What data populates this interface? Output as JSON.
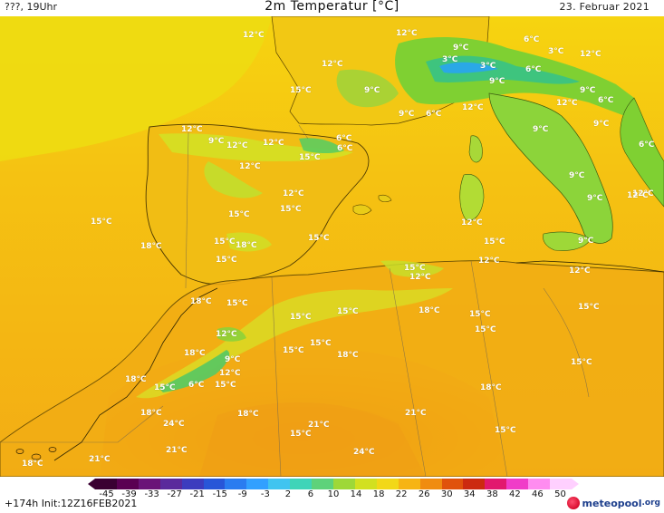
{
  "header": {
    "left": "???, 19Uhr",
    "title": "2m Temperatur [°C]",
    "date": "23. Februar 2021"
  },
  "footer": {
    "lead": "+174h",
    "init": "Init:12Z16FEB2021",
    "brand": "meteopool",
    "brand_tld": ".org"
  },
  "colorbar": {
    "ticks": [
      "-45",
      "-39",
      "-33",
      "-27",
      "-21",
      "-15",
      "-9",
      "-3",
      "2",
      "6",
      "10",
      "14",
      "18",
      "22",
      "26",
      "30",
      "34",
      "38",
      "42",
      "46",
      "50"
    ],
    "colors": [
      "#3a0032",
      "#5a0052",
      "#6a1478",
      "#5a2a9c",
      "#3c3cbe",
      "#2856d8",
      "#2a7cf0",
      "#32a0ff",
      "#40c4f0",
      "#3fd4b8",
      "#5ed27a",
      "#9ed838",
      "#d2e020",
      "#f2d818",
      "#f6b414",
      "#f08c10",
      "#e0520c",
      "#cc2a10",
      "#e2186e",
      "#f03cc8",
      "#ff8cf0",
      "#ffd0ff"
    ],
    "icon": "left-arrow-icon"
  },
  "labels": [
    {
      "text": "12°C"
    },
    {
      "text": "12°C"
    },
    {
      "text": "9°C"
    },
    {
      "text": "6°C"
    },
    {
      "text": "12°C"
    },
    {
      "text": "3°C"
    },
    {
      "text": "3°C"
    },
    {
      "text": "9°C"
    },
    {
      "text": "3°C"
    },
    {
      "text": "9°C"
    },
    {
      "text": "6°C"
    },
    {
      "text": "12°C"
    },
    {
      "text": "9°C"
    },
    {
      "text": "15°C"
    },
    {
      "text": "6°C"
    },
    {
      "text": "9°C"
    },
    {
      "text": "6°C"
    },
    {
      "text": "12°C"
    },
    {
      "text": "6°C"
    },
    {
      "text": "9°C"
    },
    {
      "text": "9°C"
    },
    {
      "text": "6°C"
    },
    {
      "text": "12°C"
    },
    {
      "text": "12°C"
    },
    {
      "text": "9°C"
    },
    {
      "text": "12°C"
    },
    {
      "text": "12°C"
    },
    {
      "text": "12°C"
    },
    {
      "text": "6°C"
    },
    {
      "text": "9°C"
    },
    {
      "text": "15°C"
    },
    {
      "text": "12°C"
    },
    {
      "text": "9°C"
    },
    {
      "text": "12°C"
    },
    {
      "text": "12°C"
    },
    {
      "text": "15°C"
    },
    {
      "text": "15°C"
    },
    {
      "text": "15°C"
    },
    {
      "text": "15°C"
    },
    {
      "text": "12°C"
    },
    {
      "text": "18°C"
    },
    {
      "text": "15°C"
    },
    {
      "text": "18°C"
    },
    {
      "text": "15°C"
    },
    {
      "text": "15°C"
    },
    {
      "text": "15°C"
    },
    {
      "text": "9°C"
    },
    {
      "text": "12°C"
    },
    {
      "text": "15°C"
    },
    {
      "text": "12°C"
    },
    {
      "text": "12°C"
    },
    {
      "text": "18°C"
    },
    {
      "text": "15°C"
    },
    {
      "text": "15°C"
    },
    {
      "text": "18°C"
    },
    {
      "text": "15°C"
    },
    {
      "text": "15°C"
    },
    {
      "text": "15°C"
    },
    {
      "text": "15°C"
    },
    {
      "text": "12°C"
    },
    {
      "text": "18°C"
    },
    {
      "text": "9°C"
    },
    {
      "text": "15°C"
    },
    {
      "text": "18°C"
    },
    {
      "text": "15°C"
    },
    {
      "text": "12°C"
    },
    {
      "text": "18°C"
    },
    {
      "text": "6°C"
    },
    {
      "text": "15°C"
    },
    {
      "text": "15°C"
    },
    {
      "text": "18°C"
    },
    {
      "text": "24°C"
    },
    {
      "text": "18°C"
    },
    {
      "text": "21°C"
    },
    {
      "text": "18°C"
    },
    {
      "text": "21°C"
    },
    {
      "text": "21°C"
    },
    {
      "text": "15°C"
    },
    {
      "text": "24°C"
    },
    {
      "text": "18°C"
    },
    {
      "text": "21°C"
    },
    {
      "text": "15°C"
    }
  ]
}
